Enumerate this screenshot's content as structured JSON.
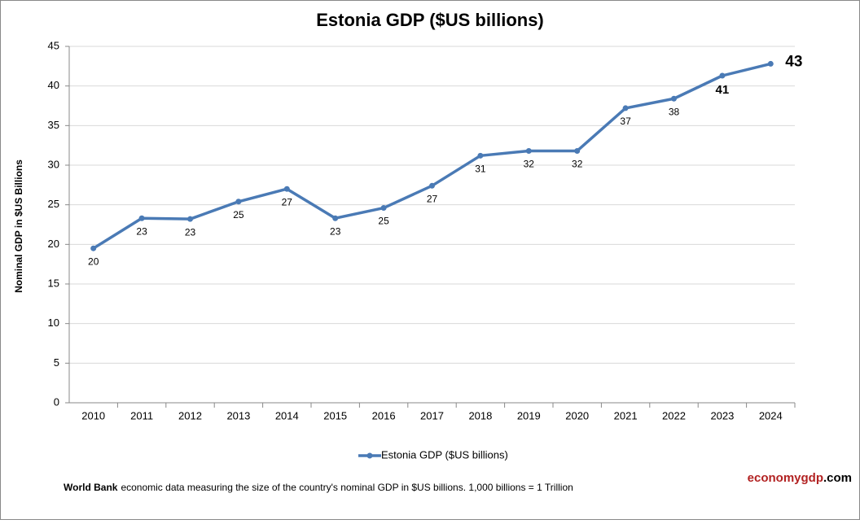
{
  "chart_data": {
    "type": "line",
    "title": "Estonia GDP ($US billions)",
    "y_label": "Nominal GDP in $US  Billions",
    "categories": [
      "2010",
      "2011",
      "2012",
      "2013",
      "2014",
      "2015",
      "2016",
      "2017",
      "2018",
      "2019",
      "2020",
      "2021",
      "2022",
      "2023",
      "2024"
    ],
    "series": [
      {
        "name": "Estonia GDP ($US billions)",
        "color": "#4a7ab5",
        "values": [
          19.5,
          23.3,
          23.2,
          25.4,
          27.0,
          23.3,
          24.6,
          27.4,
          31.2,
          31.8,
          31.8,
          37.2,
          38.4,
          41.3,
          42.8
        ],
        "value_labels": [
          "20",
          "23",
          "23",
          "25",
          "27",
          "23",
          "25",
          "27",
          "31",
          "32",
          "32",
          "37",
          "38",
          "41",
          "43"
        ]
      }
    ],
    "ylim": [
      0,
      45
    ],
    "yticks": [
      0,
      5,
      10,
      15,
      20,
      25,
      30,
      35,
      40,
      45
    ],
    "grid": true,
    "legend": "bottom"
  },
  "footer": {
    "source_bold": "World Bank",
    "source_text": "economic data  measuring the size of the country's nominal GDP in $US billions. 1,000 billions = 1 Trillion"
  },
  "brand": {
    "name": "economygdp",
    "suffix": ".com"
  }
}
